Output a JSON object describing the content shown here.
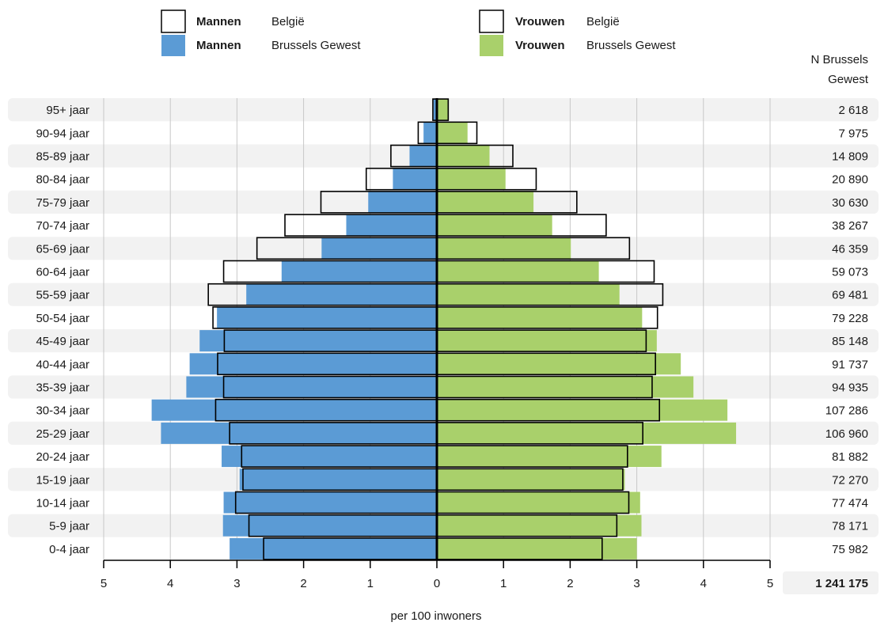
{
  "legend": {
    "men_belgium": {
      "gender": "Mannen",
      "region": "België"
    },
    "men_brussels": {
      "gender": "Mannen",
      "region": "Brussels Gewest"
    },
    "women_belgium": {
      "gender": "Vrouwen",
      "region": "België"
    },
    "women_brussels": {
      "gender": "Vrouwen",
      "region": "Brussels Gewest"
    }
  },
  "colors": {
    "men": "#5b9bd5",
    "women": "#a9d06b",
    "stripe": "#f2f2f2",
    "belgium_fill": "#ffffff"
  },
  "chart_data": {
    "type": "bar",
    "orientation": "horizontal population pyramid",
    "n_header": [
      "N Brussels",
      "Gewest"
    ],
    "xlabel": "per 100 inwoners",
    "xlim": [
      -5,
      5
    ],
    "xticks": [
      "5",
      "4",
      "3",
      "2",
      "1",
      "0",
      "1",
      "2",
      "3",
      "4",
      "5"
    ],
    "total_label": "1 241 175",
    "categories": [
      "95+ jaar",
      "90-94 jaar",
      "85-89 jaar",
      "80-84 jaar",
      "75-79 jaar",
      "70-74 jaar",
      "65-69 jaar",
      "60-64 jaar",
      "55-59 jaar",
      "50-54 jaar",
      "45-49 jaar",
      "40-44 jaar",
      "35-39 jaar",
      "30-34 jaar",
      "25-29 jaar",
      "20-24 jaar",
      "15-19 jaar",
      "10-14 jaar",
      "5-9 jaar",
      "0-4 jaar"
    ],
    "n_values": [
      "2 618",
      "7 975",
      "14 809",
      "20 890",
      "30 630",
      "38 267",
      "46 359",
      "59 073",
      "69 481",
      "79 228",
      "85 148",
      "91 737",
      "94 935",
      "107 286",
      "106 960",
      "81 882",
      "72 270",
      "77 474",
      "78 171",
      "75 982"
    ],
    "series": [
      {
        "name": "Mannen Brussels Gewest",
        "values": [
          0.05,
          0.2,
          0.41,
          0.66,
          1.03,
          1.36,
          1.73,
          2.33,
          2.86,
          3.3,
          3.56,
          3.71,
          3.76,
          4.28,
          4.14,
          3.23,
          2.96,
          3.2,
          3.21,
          3.11
        ]
      },
      {
        "name": "Mannen België",
        "values": [
          0.06,
          0.28,
          0.69,
          1.06,
          1.74,
          2.28,
          2.7,
          3.2,
          3.43,
          3.36,
          3.19,
          3.29,
          3.2,
          3.32,
          3.11,
          2.93,
          2.91,
          3.02,
          2.82,
          2.6
        ]
      },
      {
        "name": "Vrouwen Brussels Gewest",
        "values": [
          0.18,
          0.46,
          0.79,
          1.03,
          1.45,
          1.73,
          2.01,
          2.43,
          2.74,
          3.08,
          3.3,
          3.66,
          3.85,
          4.36,
          4.49,
          3.37,
          2.82,
          3.05,
          3.07,
          3.0
        ]
      },
      {
        "name": "Vrouwen België",
        "values": [
          0.17,
          0.6,
          1.14,
          1.49,
          2.1,
          2.54,
          2.89,
          3.26,
          3.39,
          3.31,
          3.14,
          3.28,
          3.23,
          3.34,
          3.09,
          2.86,
          2.79,
          2.88,
          2.7,
          2.48
        ]
      }
    ],
    "grid": true
  }
}
